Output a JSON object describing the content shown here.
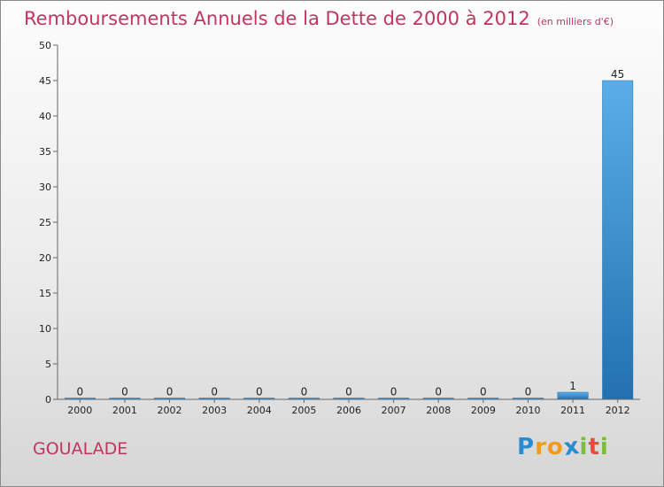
{
  "title": "Remboursements Annuels de la Dette de 2000 à 2012",
  "subtitle": "(en milliers d'€)",
  "commune": "GOUALADE",
  "logo": {
    "letters": [
      "P",
      "r",
      "o",
      "x",
      "i",
      "t",
      "i"
    ],
    "colors": [
      "#2a8bd0",
      "#f39a1d",
      "#f39a1d",
      "#2a8bd0",
      "#7cbd3a",
      "#e84d3c",
      "#7cbd3a"
    ]
  },
  "colors": {
    "title": "#c0365d",
    "bar_top": "#5aaee8",
    "bar_bottom": "#2270b0"
  },
  "chart_data": {
    "type": "bar",
    "title": "Remboursements Annuels de la Dette de 2000 à 2012",
    "xlabel": "",
    "ylabel": "",
    "categories": [
      "2000",
      "2001",
      "2002",
      "2003",
      "2004",
      "2005",
      "2006",
      "2007",
      "2008",
      "2009",
      "2010",
      "2011",
      "2012"
    ],
    "values": [
      0,
      0,
      0,
      0,
      0,
      0,
      0,
      0,
      0,
      0,
      0,
      1,
      45
    ],
    "ylim": [
      0,
      50
    ],
    "yticks": [
      0,
      5,
      10,
      15,
      20,
      25,
      30,
      35,
      40,
      45,
      50
    ],
    "grid": false
  }
}
